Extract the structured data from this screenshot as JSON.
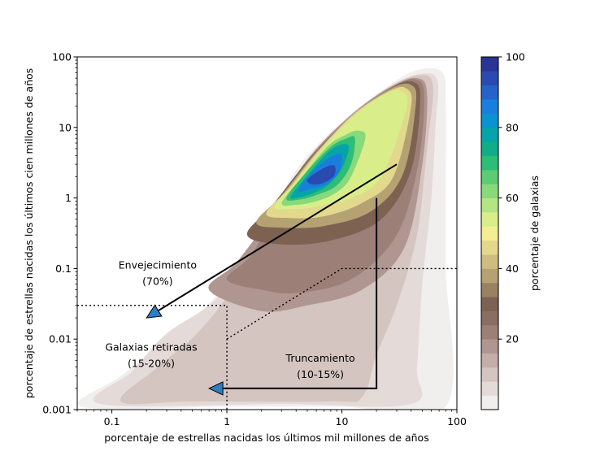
{
  "chart_data": {
    "type": "heatmap",
    "title": "",
    "xlabel": "porcentaje de estrellas nacidas los últimos mil millones de años",
    "ylabel": "porcentaje de estrellas nacidas los últimos cien millones de años",
    "x_scale": "log",
    "y_scale": "log",
    "xlim": [
      0.05,
      100
    ],
    "ylim": [
      0.001,
      100
    ],
    "x_ticks": [
      {
        "value": 0.1,
        "label": "0.1"
      },
      {
        "value": 1,
        "label": "1"
      },
      {
        "value": 10,
        "label": "10"
      },
      {
        "value": 100,
        "label": "100"
      }
    ],
    "y_ticks": [
      {
        "value": 0.001,
        "label": "0.001"
      },
      {
        "value": 0.01,
        "label": "0.01"
      },
      {
        "value": 0.1,
        "label": "0.1"
      },
      {
        "value": 1,
        "label": "1"
      },
      {
        "value": 10,
        "label": "10"
      },
      {
        "value": 100,
        "label": "100"
      }
    ],
    "colorbar": {
      "label": "porcentaje de galaxias",
      "range": [
        0,
        100
      ],
      "ticks": [
        {
          "value": 20,
          "label": "20"
        },
        {
          "value": 40,
          "label": "40"
        },
        {
          "value": 60,
          "label": "60"
        },
        {
          "value": 80,
          "label": "80"
        },
        {
          "value": 100,
          "label": "100"
        }
      ],
      "levels": [
        {
          "from": 0,
          "to": 4,
          "color": "#f1efee"
        },
        {
          "from": 4,
          "to": 8,
          "color": "#e4dbd8"
        },
        {
          "from": 8,
          "to": 12,
          "color": "#d4c5c1"
        },
        {
          "from": 12,
          "to": 16,
          "color": "#c4aea9"
        },
        {
          "from": 16,
          "to": 20,
          "color": "#b09690"
        },
        {
          "from": 20,
          "to": 24,
          "color": "#9c7f77"
        },
        {
          "from": 24,
          "to": 28,
          "color": "#8a6d63"
        },
        {
          "from": 28,
          "to": 32,
          "color": "#7d6252"
        },
        {
          "from": 32,
          "to": 36,
          "color": "#9a8260"
        },
        {
          "from": 36,
          "to": 40,
          "color": "#b5a273"
        },
        {
          "from": 40,
          "to": 44,
          "color": "#cdbd80"
        },
        {
          "from": 44,
          "to": 48,
          "color": "#e2d98c"
        },
        {
          "from": 48,
          "to": 52,
          "color": "#f2ee91"
        },
        {
          "from": 52,
          "to": 56,
          "color": "#d9ee8a"
        },
        {
          "from": 56,
          "to": 60,
          "color": "#b4e484"
        },
        {
          "from": 60,
          "to": 64,
          "color": "#88d97b"
        },
        {
          "from": 64,
          "to": 68,
          "color": "#5ccb74"
        },
        {
          "from": 68,
          "to": 72,
          "color": "#2ebd76"
        },
        {
          "from": 72,
          "to": 76,
          "color": "#10ae86"
        },
        {
          "from": 76,
          "to": 80,
          "color": "#06a4a8"
        },
        {
          "from": 80,
          "to": 84,
          "color": "#0a93d0"
        },
        {
          "from": 84,
          "to": 88,
          "color": "#1a7fdc"
        },
        {
          "from": 88,
          "to": 92,
          "color": "#2563c8"
        },
        {
          "from": 92,
          "to": 96,
          "color": "#2a4ab0"
        },
        {
          "from": 96,
          "to": 100,
          "color": "#283593"
        }
      ]
    },
    "density_contours": [
      {
        "level": 2,
        "points": [
          [
            0.055,
            0.0011
          ],
          [
            0.12,
            0.003
          ],
          [
            0.3,
            0.01
          ],
          [
            0.8,
            0.04
          ],
          [
            2,
            0.3
          ],
          [
            4,
            2.5
          ],
          [
            10,
            12
          ],
          [
            25,
            38
          ],
          [
            45,
            65
          ],
          [
            75,
            60
          ],
          [
            80,
            20
          ],
          [
            80,
            2
          ],
          [
            80,
            0.1
          ],
          [
            80,
            0.0011
          ],
          [
            10,
            0.0011
          ],
          [
            1,
            0.0011
          ]
        ]
      },
      {
        "level": 6,
        "points": [
          [
            0.08,
            0.0012
          ],
          [
            0.15,
            0.0035
          ],
          [
            0.3,
            0.012
          ],
          [
            0.7,
            0.03
          ],
          [
            1.4,
            0.1
          ],
          [
            2.5,
            0.5
          ],
          [
            5,
            3
          ],
          [
            12,
            14
          ],
          [
            28,
            40
          ],
          [
            50,
            58
          ],
          [
            68,
            45
          ],
          [
            65,
            10
          ],
          [
            60,
            1
          ],
          [
            50,
            0.06
          ],
          [
            45,
            0.004
          ],
          [
            40,
            0.0012
          ],
          [
            3,
            0.0012
          ]
        ]
      },
      {
        "level": 10,
        "points": [
          [
            0.12,
            0.0013
          ],
          [
            0.25,
            0.004
          ],
          [
            0.55,
            0.012
          ],
          [
            1.1,
            0.05
          ],
          [
            2,
            0.3
          ],
          [
            4.5,
            2.5
          ],
          [
            11,
            13
          ],
          [
            26,
            38
          ],
          [
            48,
            55
          ],
          [
            62,
            38
          ],
          [
            55,
            5
          ],
          [
            45,
            0.3
          ],
          [
            30,
            0.03
          ],
          [
            20,
            0.006
          ],
          [
            15,
            0.0015
          ],
          [
            8,
            0.0013
          ],
          [
            0.5,
            0.0013
          ]
        ]
      },
      {
        "level": 16,
        "points": [
          [
            0.7,
            0.05
          ],
          [
            1.2,
            0.12
          ],
          [
            2.3,
            0.5
          ],
          [
            5,
            3.5
          ],
          [
            12,
            15
          ],
          [
            27,
            38
          ],
          [
            45,
            50
          ],
          [
            55,
            30
          ],
          [
            50,
            3
          ],
          [
            35,
            0.2
          ],
          [
            15,
            0.05
          ],
          [
            5,
            0.03
          ],
          [
            2,
            0.025
          ]
        ]
      },
      {
        "level": 22,
        "points": [
          [
            1,
            0.07
          ],
          [
            1.6,
            0.15
          ],
          [
            2.6,
            0.55
          ],
          [
            5.5,
            3.6
          ],
          [
            12.5,
            15
          ],
          [
            28,
            38
          ],
          [
            44,
            48
          ],
          [
            52,
            28
          ],
          [
            46,
            3
          ],
          [
            30,
            0.3
          ],
          [
            12,
            0.07
          ],
          [
            4,
            0.045
          ],
          [
            2,
            0.05
          ]
        ]
      },
      {
        "level": 30,
        "points": [
          [
            1.5,
            0.3
          ],
          [
            2.5,
            0.8
          ],
          [
            5.5,
            4
          ],
          [
            13,
            16
          ],
          [
            28,
            38
          ],
          [
            42,
            44
          ],
          [
            48,
            25
          ],
          [
            40,
            2.5
          ],
          [
            22,
            0.5
          ],
          [
            8,
            0.25
          ],
          [
            3,
            0.22
          ]
        ]
      },
      {
        "level": 38,
        "points": [
          [
            1.8,
            0.45
          ],
          [
            3,
            1.1
          ],
          [
            6,
            4.5
          ],
          [
            13,
            16
          ],
          [
            27,
            36
          ],
          [
            40,
            40
          ],
          [
            44,
            22
          ],
          [
            34,
            2.2
          ],
          [
            18,
            0.65
          ],
          [
            7,
            0.4
          ],
          [
            3,
            0.38
          ]
        ]
      },
      {
        "level": 46,
        "points": [
          [
            2.2,
            0.6
          ],
          [
            3.5,
            1.4
          ],
          [
            6.5,
            5
          ],
          [
            13,
            16
          ],
          [
            26,
            33
          ],
          [
            36,
            36
          ],
          [
            40,
            20
          ],
          [
            28,
            2
          ],
          [
            15,
            0.85
          ],
          [
            7,
            0.55
          ],
          [
            3.5,
            0.52
          ]
        ]
      },
      {
        "level": 54,
        "points": [
          [
            2.6,
            0.75
          ],
          [
            4,
            1.7
          ],
          [
            7,
            5.3
          ],
          [
            13,
            15
          ],
          [
            24,
            30
          ],
          [
            34,
            32
          ],
          [
            36,
            17
          ],
          [
            22,
            2
          ],
          [
            12,
            1
          ],
          [
            6,
            0.75
          ],
          [
            3.8,
            0.7
          ]
        ]
      },
      {
        "level": 62,
        "points": [
          [
            3,
            0.85
          ],
          [
            4.5,
            2
          ],
          [
            7.5,
            5.4
          ],
          [
            11,
            8
          ],
          [
            14,
            9
          ],
          [
            16,
            7
          ],
          [
            12,
            2
          ],
          [
            9,
            1.2
          ],
          [
            6,
            0.9
          ],
          [
            4,
            0.8
          ]
        ]
      },
      {
        "level": 70,
        "points": [
          [
            3.3,
            1
          ],
          [
            5,
            2.4
          ],
          [
            8,
            5.3
          ],
          [
            11,
            7
          ],
          [
            13,
            7
          ],
          [
            12,
            3
          ],
          [
            9,
            1.5
          ],
          [
            6,
            1.1
          ],
          [
            4.3,
            0.95
          ]
        ]
      },
      {
        "level": 78,
        "points": [
          [
            3.6,
            1.05
          ],
          [
            5.5,
            2.5
          ],
          [
            8,
            4.8
          ],
          [
            10.5,
            5.8
          ],
          [
            11.5,
            5
          ],
          [
            10,
            2.6
          ],
          [
            7.5,
            1.5
          ],
          [
            5.5,
            1.15
          ],
          [
            4.2,
            1.02
          ]
        ]
      },
      {
        "level": 86,
        "points": [
          [
            4.2,
            1.3
          ],
          [
            6,
            2.7
          ],
          [
            8.5,
            4
          ],
          [
            10,
            4
          ],
          [
            9.5,
            2.4
          ],
          [
            7.5,
            1.6
          ],
          [
            5.5,
            1.35
          ]
        ]
      },
      {
        "level": 95,
        "points": [
          [
            5,
            1.8
          ],
          [
            6.5,
            2.5
          ],
          [
            8.5,
            2.9
          ],
          [
            8.6,
            2.1
          ],
          [
            7,
            1.65
          ],
          [
            5.6,
            1.55
          ]
        ]
      }
    ],
    "dotted_lines": [
      {
        "points": [
          [
            0.05,
            0.03
          ],
          [
            1,
            0.03
          ],
          [
            1,
            0.001
          ]
        ]
      },
      {
        "points": [
          [
            1,
            0.01
          ],
          [
            10,
            0.1
          ],
          [
            100,
            0.1
          ]
        ]
      }
    ],
    "arrows": [
      {
        "name": "envejecimiento-arrow",
        "points": [
          [
            30,
            3
          ],
          [
            0.2,
            0.02
          ]
        ],
        "head_color": "#2e7fc1"
      },
      {
        "name": "truncamiento-arrow",
        "points": [
          [
            20,
            1
          ],
          [
            20,
            0.002
          ],
          [
            0.7,
            0.002
          ]
        ],
        "head_color": "#2e7fc1"
      }
    ],
    "annotations": [
      {
        "name": "envejecimiento",
        "lines": [
          "Envejecimiento",
          "(70%)"
        ],
        "x": 0.25,
        "y": 0.1
      },
      {
        "name": "galaxias-retiradas",
        "lines": [
          "Galaxias retiradas",
          "(15-20%)"
        ],
        "x": 0.22,
        "y": 0.0068
      },
      {
        "name": "truncamiento",
        "lines": [
          "Truncamiento",
          "(10-15%)"
        ],
        "x": 6.5,
        "y": 0.0048
      }
    ]
  }
}
